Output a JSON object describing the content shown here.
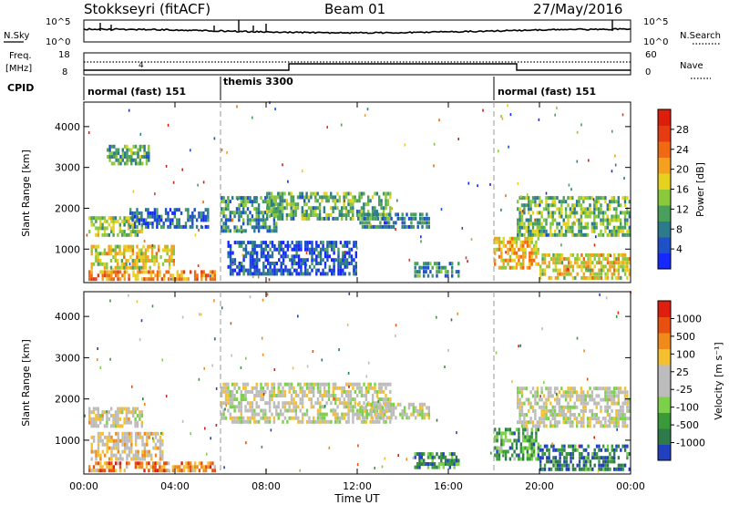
{
  "header": {
    "title": "Stokkseyri (fitACF)",
    "beam": "Beam 01",
    "date": "27/May/2016"
  },
  "noise_panel": {
    "left_label": "N.Sky",
    "right_label": "N.Search",
    "left_ticks": [
      "10^5",
      "10^0"
    ],
    "right_ticks": [
      "10^5",
      "10^0"
    ]
  },
  "freq_panel": {
    "left_label_line1": "Freq.",
    "left_label_line2": "[MHz]",
    "right_label": "Nave",
    "left_ticks": [
      "18",
      "8"
    ],
    "right_ticks": [
      "60",
      "0"
    ]
  },
  "cpid": {
    "label": "CPID",
    "segments": [
      "normal (fast) 151",
      "themis 3300",
      "normal (fast) 151"
    ],
    "boundaries_hours": [
      6,
      18
    ]
  },
  "chart_data": [
    {
      "type": "heatmap",
      "name": "power",
      "xlabel": "",
      "ylabel": "Slant Range [km]",
      "xlim": [
        0,
        24
      ],
      "ylim": [
        180,
        4600
      ],
      "yticks": [
        "4000",
        "3000",
        "2000",
        "1000"
      ],
      "ytick_values": [
        4000,
        3000,
        2000,
        1000
      ],
      "colorbar": {
        "label": "Power [dB]",
        "tick_labels": [
          "28",
          "24",
          "20",
          "16",
          "12",
          "8",
          "4"
        ],
        "colors": [
          "#1428ff",
          "#1e50c8",
          "#2d7a8c",
          "#4aa05a",
          "#8cc83c",
          "#e6d21e",
          "#f5a01e",
          "#f06a14",
          "#e63c14",
          "#dc1e0a"
        ]
      },
      "regions": [
        {
          "t0": 0.2,
          "t1": 2.6,
          "r0": 1300,
          "r1": 1800,
          "level": 0.45
        },
        {
          "t0": 0.3,
          "t1": 4.0,
          "r0": 500,
          "r1": 1100,
          "level": 0.55
        },
        {
          "t0": 0.2,
          "t1": 5.8,
          "r0": 220,
          "r1": 480,
          "level": 0.7
        },
        {
          "t0": 1.0,
          "t1": 2.9,
          "r0": 3050,
          "r1": 3550,
          "level": 0.35
        },
        {
          "t0": 2.0,
          "t1": 5.5,
          "r0": 1500,
          "r1": 2000,
          "level": 0.2
        },
        {
          "t0": 6.0,
          "t1": 8.5,
          "r0": 1400,
          "r1": 2300,
          "level": 0.3
        },
        {
          "t0": 8.0,
          "t1": 13.5,
          "r0": 1700,
          "r1": 2400,
          "level": 0.35
        },
        {
          "t0": 6.3,
          "t1": 12.0,
          "r0": 350,
          "r1": 1200,
          "level": 0.15
        },
        {
          "t0": 12.0,
          "t1": 15.2,
          "r0": 1500,
          "r1": 1900,
          "level": 0.25
        },
        {
          "t0": 14.5,
          "t1": 16.5,
          "r0": 300,
          "r1": 700,
          "level": 0.3
        },
        {
          "t0": 18.0,
          "t1": 20.0,
          "r0": 500,
          "r1": 1300,
          "level": 0.6
        },
        {
          "t0": 19.0,
          "t1": 24.0,
          "r0": 1300,
          "r1": 2300,
          "level": 0.4
        },
        {
          "t0": 20.0,
          "t1": 24.0,
          "r0": 250,
          "r1": 900,
          "level": 0.55
        }
      ]
    },
    {
      "type": "heatmap",
      "name": "velocity",
      "xlabel": "Time UT",
      "ylabel": "Slant Range [km]",
      "xlim": [
        0,
        24
      ],
      "ylim": [
        180,
        4600
      ],
      "xticks": [
        "00:00",
        "04:00",
        "08:00",
        "12:00",
        "16:00",
        "20:00",
        "00:00"
      ],
      "xtick_hours": [
        0,
        4,
        8,
        12,
        16,
        20,
        24
      ],
      "yticks": [
        "4000",
        "3000",
        "2000",
        "1000"
      ],
      "ytick_values": [
        4000,
        3000,
        2000,
        1000
      ],
      "colorbar": {
        "label": "Velocity [m s⁻¹]",
        "tick_labels": [
          "1000",
          "500",
          "100",
          "25",
          "-25",
          "-100",
          "-500",
          "-1000"
        ],
        "colors": [
          "#2040c0",
          "#2f7a4a",
          "#3a9a3a",
          "#7cd04a",
          "#bcbcbc",
          "#bcbcbc",
          "#f5c030",
          "#f08a1a",
          "#e85010",
          "#e01e10"
        ]
      },
      "regions": [
        {
          "t0": 0.2,
          "t1": 5.8,
          "r0": 220,
          "r1": 480,
          "level": 0.75
        },
        {
          "t0": 0.3,
          "t1": 3.5,
          "r0": 500,
          "r1": 1200,
          "level": 0.6
        },
        {
          "t0": 0.2,
          "t1": 2.6,
          "r0": 1300,
          "r1": 1800,
          "level": 0.55
        },
        {
          "t0": 6.0,
          "t1": 13.5,
          "r0": 1400,
          "r1": 2400,
          "level": 0.5
        },
        {
          "t0": 12.0,
          "t1": 15.2,
          "r0": 1500,
          "r1": 1900,
          "level": 0.5
        },
        {
          "t0": 14.5,
          "t1": 16.5,
          "r0": 300,
          "r1": 700,
          "level": 0.2
        },
        {
          "t0": 18.0,
          "t1": 20.0,
          "r0": 500,
          "r1": 1300,
          "level": 0.25
        },
        {
          "t0": 19.0,
          "t1": 24.0,
          "r0": 1300,
          "r1": 2300,
          "level": 0.5
        },
        {
          "t0": 20.0,
          "t1": 24.0,
          "r0": 250,
          "r1": 900,
          "level": 0.15
        }
      ]
    }
  ]
}
